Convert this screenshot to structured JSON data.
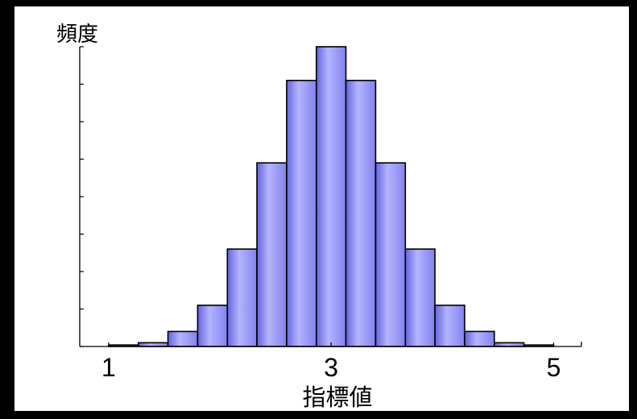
{
  "chart_data": {
    "type": "bar",
    "xlabel": "指標値",
    "ylabel": "頻度",
    "bin_edges": [
      1,
      1.267,
      1.533,
      1.8,
      2.067,
      2.333,
      2.6,
      2.867,
      3.133,
      3.4,
      3.667,
      3.933,
      4.2,
      4.467,
      4.733,
      5
    ],
    "values": [
      0.04,
      0.1,
      0.4,
      1.1,
      2.6,
      4.9,
      7.1,
      8.0,
      7.1,
      4.9,
      2.6,
      1.1,
      0.4,
      0.1,
      0.04
    ],
    "xticks": [
      1,
      3,
      5
    ],
    "xtick_labels": [
      "1",
      "3",
      "5"
    ],
    "yticks": [
      0,
      1,
      2,
      3,
      4,
      5,
      6,
      7,
      8
    ],
    "xlim": [
      0.74,
      5.25
    ],
    "ylim": [
      0,
      8
    ],
    "grid": false,
    "bar_color": "#b4b4ff",
    "bar_edge_color": "#000000"
  }
}
